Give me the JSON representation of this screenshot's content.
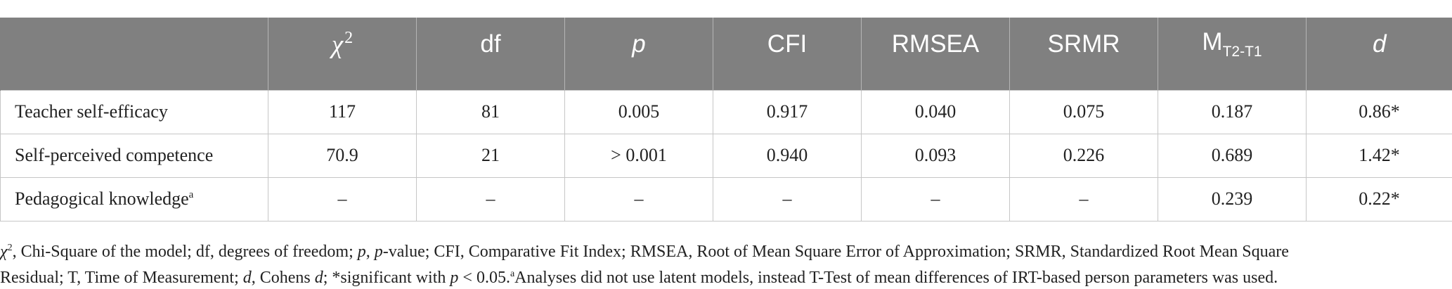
{
  "table": {
    "headers": {
      "blank": "",
      "chi_symbol": "χ",
      "chi_exponent": "2",
      "df": "df",
      "p": "p",
      "cfi": "CFI",
      "rmsea": "RMSEA",
      "srmr": "SRMR",
      "m_base": "M",
      "m_sub": "T2-T1",
      "d": "d"
    },
    "header_bg": "#808080",
    "rows": [
      {
        "label": "Teacher self-efficacy",
        "label_sup": "",
        "chi2": "117",
        "df": "81",
        "p": "0.005",
        "cfi": "0.917",
        "rmsea": "0.040",
        "srmr": "0.075",
        "m": "0.187",
        "d": "0.86*"
      },
      {
        "label": "Self-perceived competence",
        "label_sup": "",
        "chi2": "70.9",
        "df": "21",
        "p": "> 0.001",
        "cfi": "0.940",
        "rmsea": "0.093",
        "srmr": "0.226",
        "m": "0.689",
        "d": "1.42*"
      },
      {
        "label": "Pedagogical knowledge",
        "label_sup": "a",
        "chi2": "–",
        "df": "–",
        "p": "–",
        "cfi": "–",
        "rmsea": "–",
        "srmr": "–",
        "m": "0.239",
        "d": "0.22*"
      }
    ]
  },
  "notes": {
    "chi_symbol": "χ",
    "chi_exponent": "2",
    "part1": ", Chi-Square of the model; df, degrees of freedom; ",
    "p_italic": "p",
    "part2": ", ",
    "p_italic2": "p",
    "part3": "-value; CFI, Comparative Fit Index; RMSEA, Root of Mean Square Error of Approximation; SRMR, Standardized Root Mean Square",
    "part4": "Residual; T, Time of Measurement; ",
    "d_italic": "d",
    "part5": ", Cohens ",
    "d_italic2": "d",
    "part6": "; *significant with ",
    "p_italic3": "p",
    "part7": " < 0.05.",
    "sup_a": "a",
    "part8": "Analyses did not use latent models, instead T-Test of mean differences of IRT-based person parameters was used."
  }
}
